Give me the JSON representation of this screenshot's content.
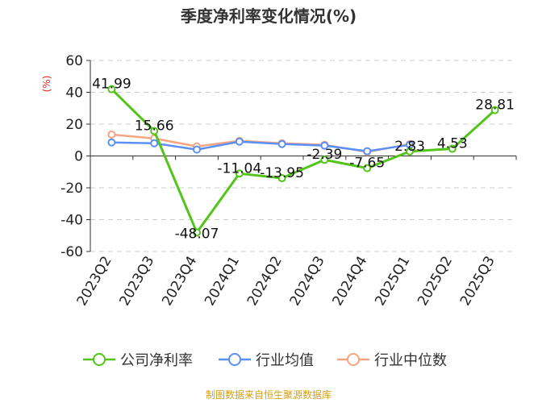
{
  "title": "季度净利率变化情况(%)",
  "source": "制图数据来自恒生聚源数据库",
  "chart_data": {
    "type": "line",
    "title": "季度净利率变化情况(%)",
    "ylabel": "(%)",
    "ylim": [
      -60,
      60
    ],
    "yticks": [
      60,
      40,
      20,
      0,
      -20,
      -40,
      -60
    ],
    "categories": [
      "2023Q2",
      "2023Q3",
      "2023Q4",
      "2024Q1",
      "2024Q2",
      "2024Q3",
      "2024Q4",
      "2025Q1",
      "2025Q2",
      "2025Q3"
    ],
    "grid": true,
    "legend_position": "bottom",
    "series": [
      {
        "name": "公司净利率",
        "color": "#52c41a",
        "values": [
          41.99,
          15.66,
          -48.07,
          -11.04,
          -13.95,
          -2.39,
          -7.65,
          2.83,
          4.53,
          28.81
        ],
        "labels": [
          "41.99",
          "15.66",
          "-48.07",
          "-11.04",
          "-13.95",
          "-2.39",
          "-7.65",
          "2.83",
          "4.53",
          "28.81"
        ]
      },
      {
        "name": "行业均值",
        "color": "#5b8ff9",
        "values": [
          8.5,
          8.0,
          4.0,
          9.0,
          7.5,
          6.5,
          3.0,
          7.0,
          null,
          null
        ]
      },
      {
        "name": "行业中位数",
        "color": "#f4a582",
        "values": [
          13.5,
          11.0,
          6.0,
          9.5,
          8.0,
          7.0,
          2.5,
          7.5,
          null,
          null
        ]
      }
    ]
  }
}
